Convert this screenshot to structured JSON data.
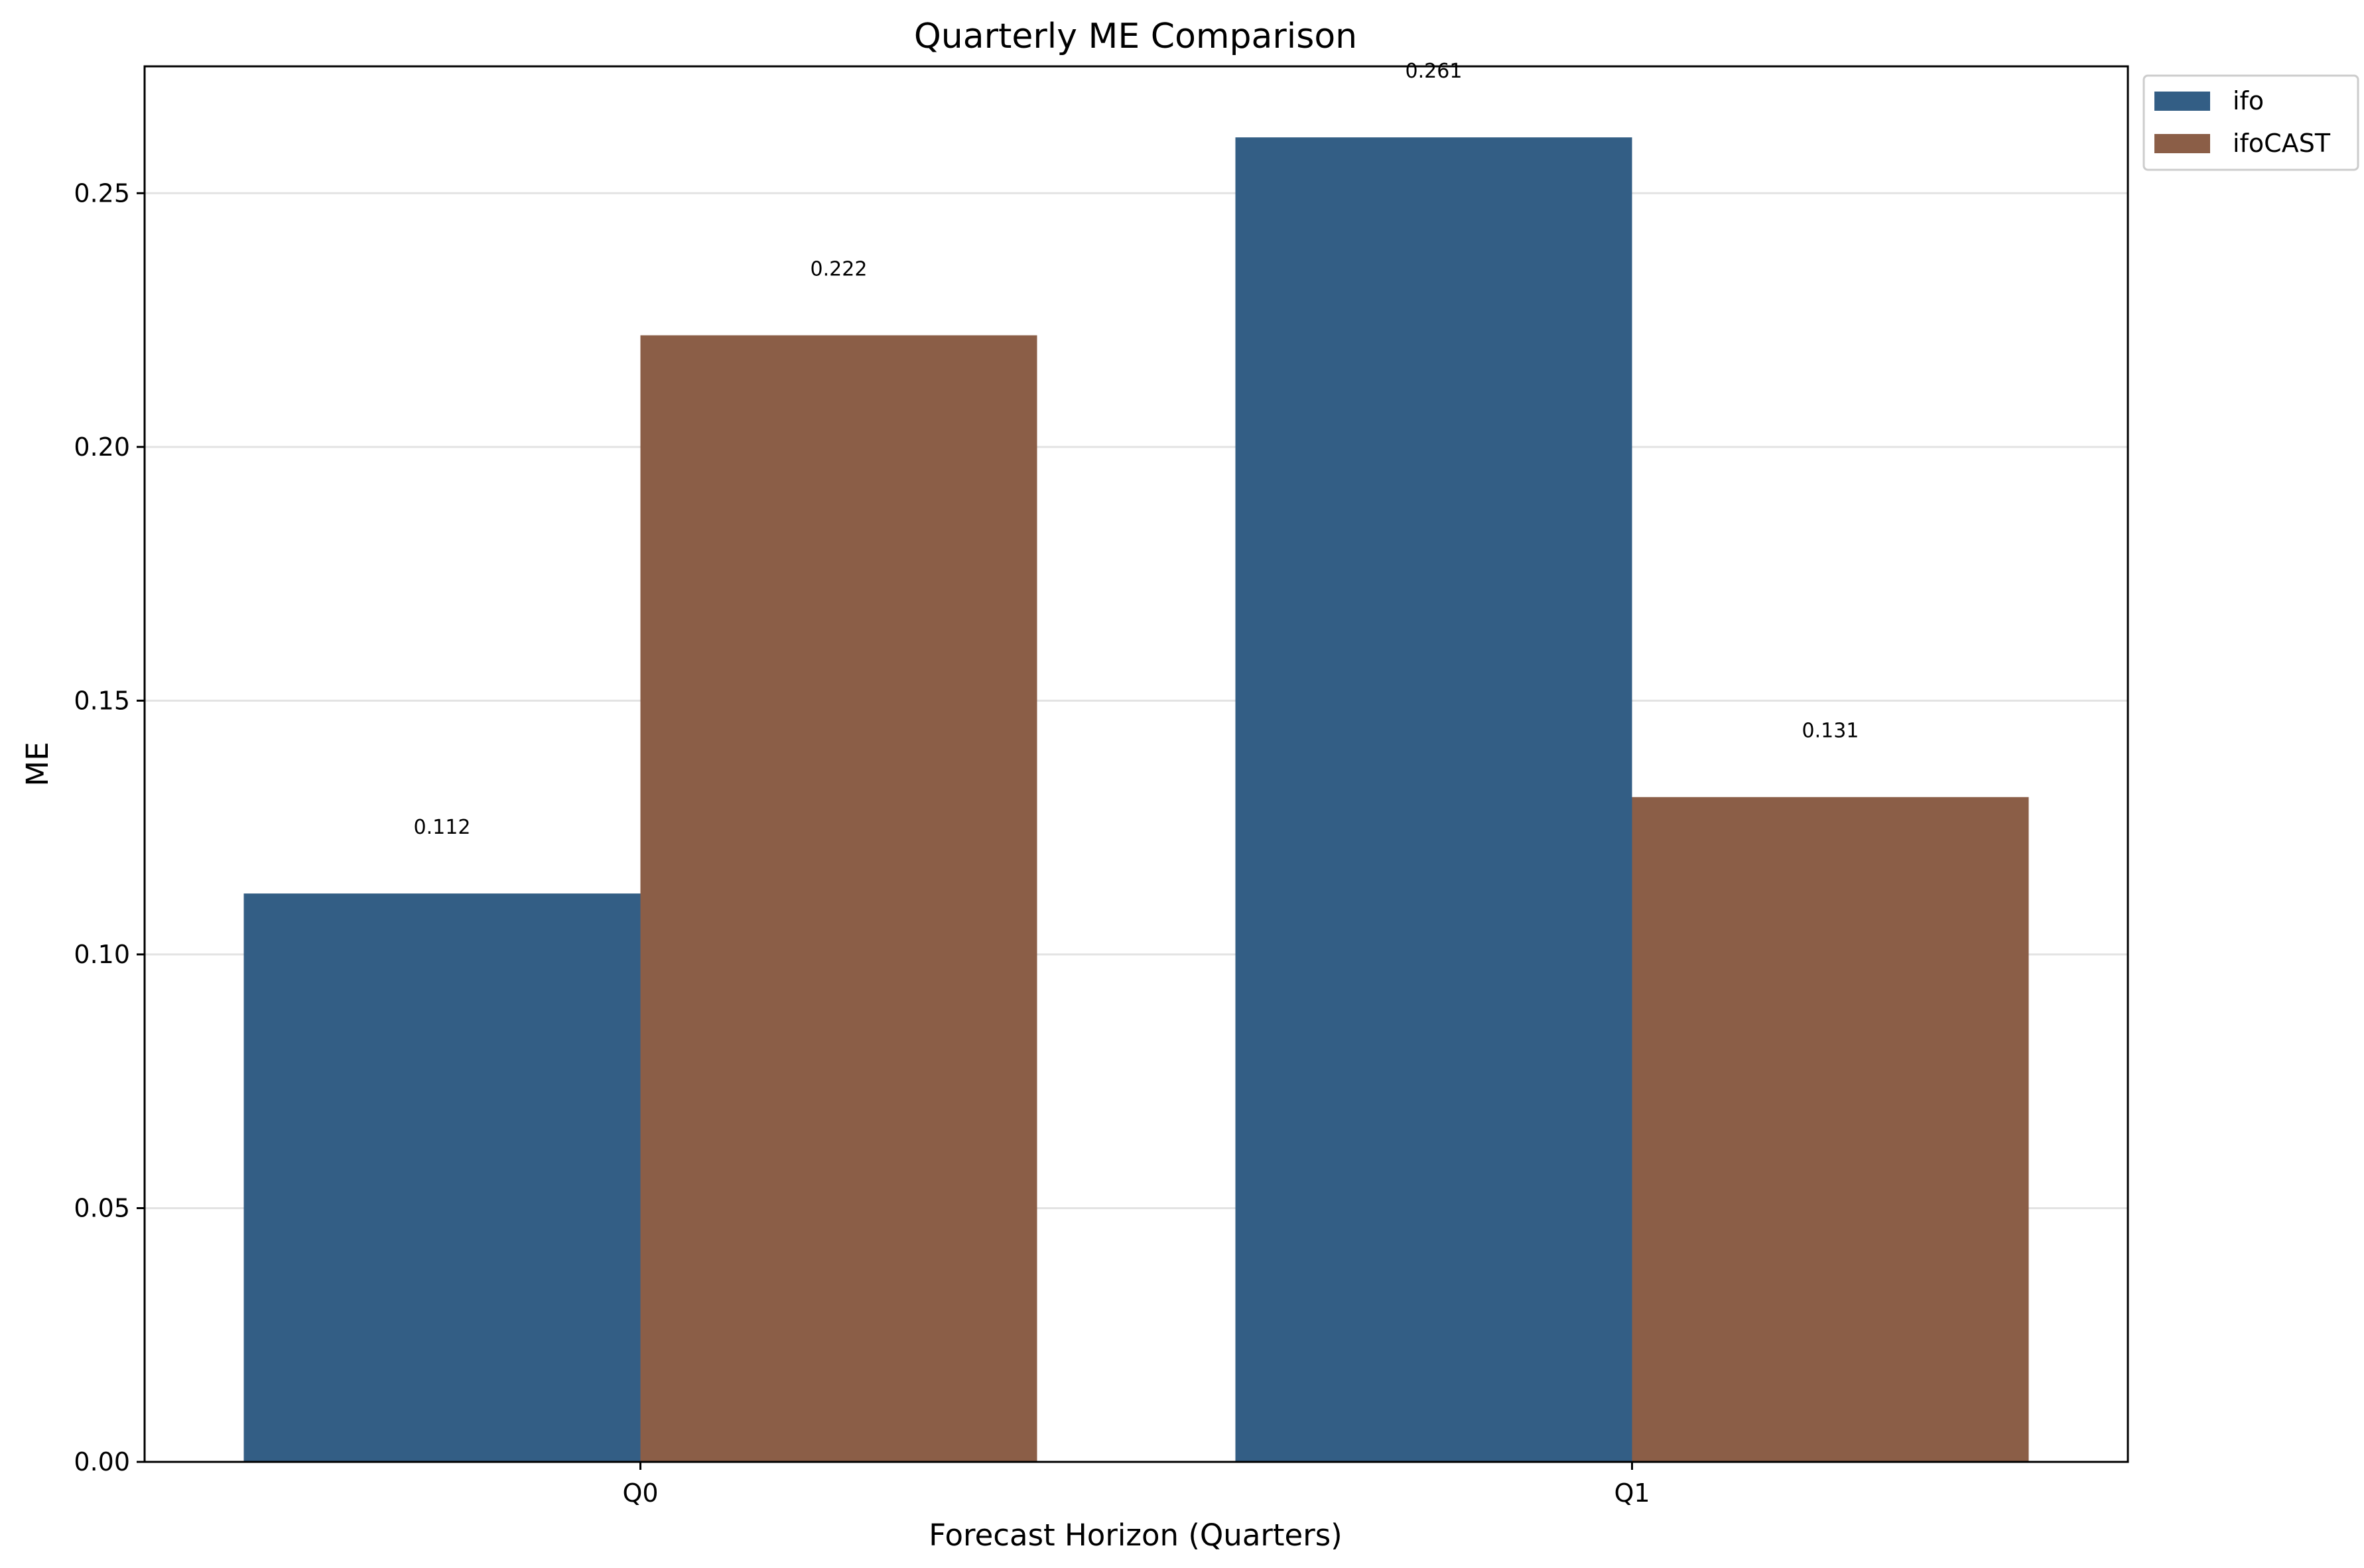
{
  "chart_data": {
    "type": "bar",
    "title": "Quarterly ME Comparison",
    "xlabel": "Forecast Horizon (Quarters)",
    "ylabel": "ME",
    "categories": [
      "Q0",
      "Q1"
    ],
    "series": [
      {
        "name": "ifo",
        "color": "#335e85",
        "values": [
          0.112,
          0.261
        ],
        "labels": [
          "0.112",
          "0.261"
        ]
      },
      {
        "name": "ifoCAST",
        "color": "#8b5e47",
        "values": [
          0.222,
          0.131
        ],
        "labels": [
          "0.222",
          "0.131"
        ]
      }
    ],
    "ylim": [
      0,
      0.275
    ],
    "yticks": [
      0.0,
      0.05,
      0.1,
      0.15,
      0.2,
      0.25
    ],
    "ytick_labels": [
      "0.00",
      "0.05",
      "0.10",
      "0.15",
      "0.20",
      "0.25"
    ],
    "grid": "y",
    "legend_position": "outside-top-right"
  }
}
